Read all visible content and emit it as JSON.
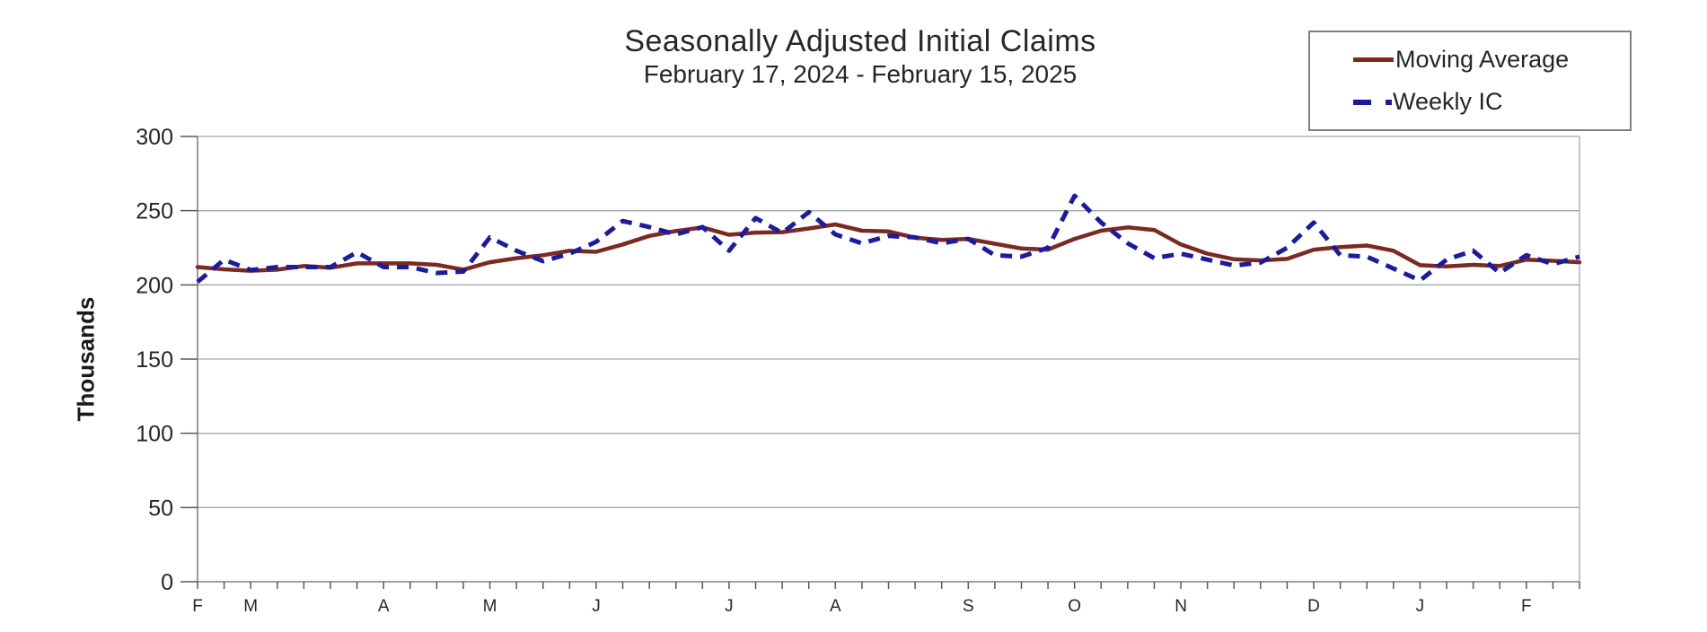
{
  "chart_data": {
    "type": "line",
    "title": "Seasonally Adjusted Initial Claims",
    "subtitle": "February 17, 2024 - February 15, 2025",
    "ylabel": "Thousands",
    "ylim": [
      0,
      300
    ],
    "yticks": [
      0,
      50,
      100,
      150,
      200,
      250,
      300
    ],
    "ytick_labels": [
      "0",
      "50",
      "100",
      "150",
      "200",
      "250",
      "300"
    ],
    "grid": "horizontal",
    "legend_position": "top-right",
    "x_axis": {
      "unit": "week",
      "n_points": 53,
      "month_labels": [
        "F",
        "M",
        "A",
        "M",
        "J",
        "J",
        "A",
        "S",
        "O",
        "N",
        "D",
        "J",
        "F"
      ],
      "month_point_indices": [
        0,
        2,
        7,
        11,
        15,
        20,
        24,
        29,
        33,
        37,
        42,
        46,
        50
      ]
    },
    "series": [
      {
        "name": "Moving Average",
        "style": "solid",
        "color": "#7A2A20",
        "values": [
          212,
          210.5,
          209.5,
          210.25,
          212.75,
          211.5,
          214.5,
          214.5,
          214.5,
          213.5,
          210.25,
          215.25,
          218,
          220,
          223,
          222.25,
          227.25,
          233,
          236.25,
          238.75,
          233.75,
          235.25,
          235.5,
          238,
          240.75,
          236.5,
          236,
          231.75,
          230.25,
          231,
          227.75,
          224.5,
          223.75,
          231,
          236.5,
          238.75,
          237,
          227.25,
          221,
          217.25,
          216.5,
          217.5,
          223.75,
          225.5,
          226.5,
          223,
          213.25,
          212.5,
          213.5,
          212.75,
          217,
          216.25,
          215.25
        ]
      },
      {
        "name": "Weekly IC",
        "style": "dashed",
        "color": "#1B1B9E",
        "values": [
          202,
          217,
          210,
          212,
          212,
          212,
          222,
          212,
          212,
          208,
          209,
          232,
          223,
          216,
          221,
          229,
          243,
          239,
          234,
          239,
          223,
          245,
          235,
          249,
          234,
          228,
          233,
          232,
          228,
          231,
          220,
          219,
          225,
          260,
          242,
          228,
          218,
          221,
          217,
          213,
          215,
          225,
          242,
          220,
          219,
          211,
          203,
          217,
          223,
          208,
          220,
          214,
          219
        ]
      }
    ]
  },
  "colors": {
    "background": "#FFFFFF",
    "axis": "#808080",
    "gridline": "#A6A6A6",
    "tick": "#595959",
    "text": "#262626",
    "legend_border": "#7F7F7F"
  }
}
